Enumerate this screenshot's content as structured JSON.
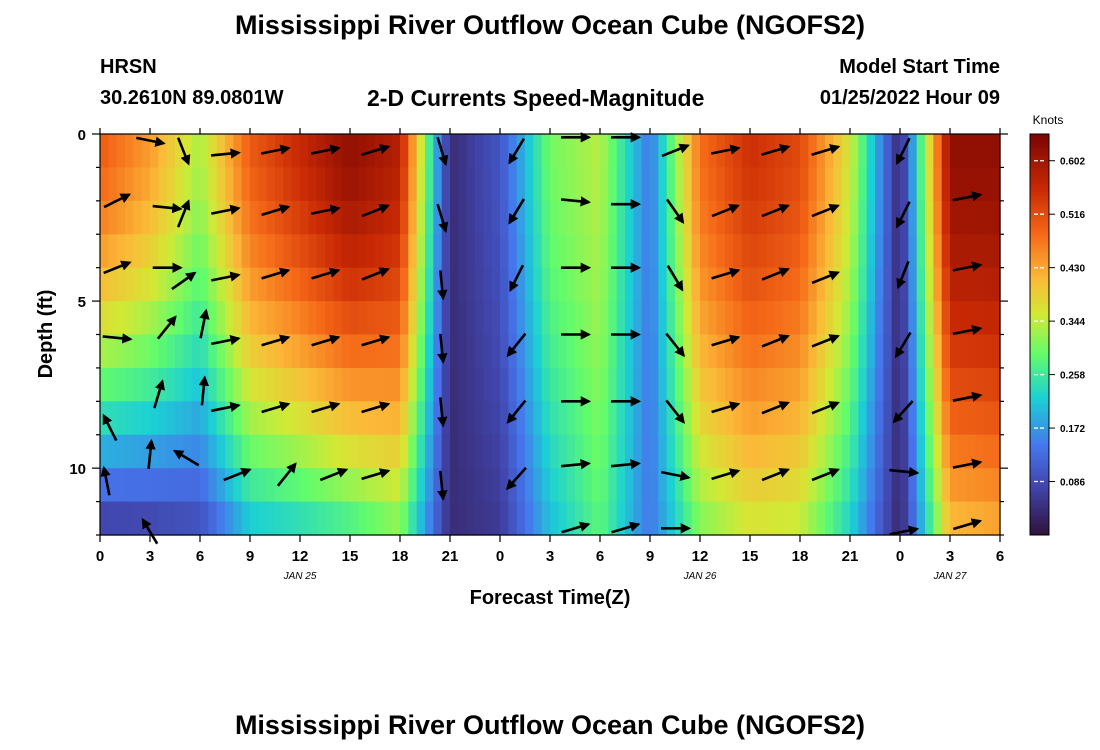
{
  "header": {
    "title": "Mississippi River Outflow Ocean Cube (NGOFS2)",
    "station": "HRSN",
    "coords": "30.2610N  89.0801W",
    "chart_subtitle": "2-D Currents Speed-Magnitude",
    "model_label": "Model Start Time",
    "model_time": "01/25/2022 Hour 09",
    "bottom_title": "Mississippi River Outflow Ocean Cube (NGOFS2)"
  },
  "chart_data": {
    "type": "heatmap",
    "title": "2-D Currents Speed-Magnitude",
    "xlabel": "Forecast Time(Z)",
    "ylabel": "Depth (ft)",
    "x_tick_labels": [
      "0",
      "3",
      "6",
      "9",
      "12",
      "15",
      "18",
      "21",
      "0",
      "3",
      "6",
      "9",
      "12",
      "15",
      "18",
      "21",
      "0",
      "3",
      "6"
    ],
    "date_labels": [
      {
        "label": "JAN 25",
        "hour": 12
      },
      {
        "label": "JAN 26",
        "hour": 36
      },
      {
        "label": "JAN 27",
        "hour": 51
      }
    ],
    "xlim": [
      0,
      54
    ],
    "ylim": [
      0,
      12
    ],
    "y_ticks": [
      0,
      5,
      10
    ],
    "colorbar": {
      "unit": "Knots",
      "min": 0.0,
      "max": 0.645,
      "tick_labels": [
        "0.602",
        "0.516",
        "0.430",
        "0.344",
        "0.258",
        "0.172",
        "0.086"
      ],
      "tick_values": [
        0.602,
        0.516,
        0.43,
        0.344,
        0.258,
        0.172,
        0.086
      ]
    },
    "speed_profile_time_hours": [
      0,
      3,
      6,
      9,
      12,
      15,
      18,
      21,
      24,
      27,
      30,
      33,
      36,
      39,
      42,
      45,
      48,
      51,
      54
    ],
    "speed_surface_knots": [
      0.5,
      0.44,
      0.33,
      0.5,
      0.56,
      0.62,
      0.58,
      0.04,
      0.1,
      0.3,
      0.34,
      0.14,
      0.48,
      0.55,
      0.52,
      0.36,
      0.03,
      0.62,
      0.62
    ],
    "speed_bottom_knots": [
      0.05,
      0.06,
      0.08,
      0.2,
      0.22,
      0.25,
      0.3,
      0.04,
      0.06,
      0.2,
      0.28,
      0.14,
      0.3,
      0.35,
      0.34,
      0.22,
      0.03,
      0.4,
      0.42
    ],
    "vectors": [
      {
        "hour": 3,
        "depth": 0.2,
        "u": 1,
        "v": -0.2
      },
      {
        "hour": 5,
        "depth": 0.5,
        "u": 0.4,
        "v": -1
      },
      {
        "hour": 7.5,
        "depth": 0.6,
        "u": 1,
        "v": 0.1
      },
      {
        "hour": 10.5,
        "depth": 0.5,
        "u": 1,
        "v": 0.2
      },
      {
        "hour": 13.5,
        "depth": 0.5,
        "u": 1,
        "v": 0.2
      },
      {
        "hour": 16.5,
        "depth": 0.5,
        "u": 1,
        "v": 0.3
      },
      {
        "hour": 20.5,
        "depth": 0.5,
        "u": 0.3,
        "v": -1
      },
      {
        "hour": 25,
        "depth": 0.5,
        "u": -0.6,
        "v": -1
      },
      {
        "hour": 28.5,
        "depth": 0.1,
        "u": 1,
        "v": 0
      },
      {
        "hour": 31.5,
        "depth": 0.1,
        "u": 1,
        "v": 0
      },
      {
        "hour": 34.5,
        "depth": 0.5,
        "u": 1,
        "v": 0.4
      },
      {
        "hour": 37.5,
        "depth": 0.5,
        "u": 1,
        "v": 0.2
      },
      {
        "hour": 40.5,
        "depth": 0.5,
        "u": 1,
        "v": 0.3
      },
      {
        "hour": 43.5,
        "depth": 0.5,
        "u": 1,
        "v": 0.3
      },
      {
        "hour": 48.2,
        "depth": 0.5,
        "u": -0.5,
        "v": -1
      },
      {
        "hour": 1,
        "depth": 2.0,
        "u": 1,
        "v": 0.5
      },
      {
        "hour": 4,
        "depth": 2.2,
        "u": 1,
        "v": -0.1
      },
      {
        "hour": 5,
        "depth": 2.4,
        "u": 0.4,
        "v": 1
      },
      {
        "hour": 7.5,
        "depth": 2.3,
        "u": 1,
        "v": 0.2
      },
      {
        "hour": 10.5,
        "depth": 2.3,
        "u": 1,
        "v": 0.3
      },
      {
        "hour": 13.5,
        "depth": 2.3,
        "u": 1,
        "v": 0.2
      },
      {
        "hour": 16.5,
        "depth": 2.3,
        "u": 1,
        "v": 0.4
      },
      {
        "hour": 20.5,
        "depth": 2.5,
        "u": 0.3,
        "v": -1
      },
      {
        "hour": 25,
        "depth": 2.3,
        "u": -0.6,
        "v": -1
      },
      {
        "hour": 28.5,
        "depth": 2.0,
        "u": 1,
        "v": -0.1
      },
      {
        "hour": 31.5,
        "depth": 2.1,
        "u": 1,
        "v": 0
      },
      {
        "hour": 34.5,
        "depth": 2.3,
        "u": 0.7,
        "v": -1
      },
      {
        "hour": 37.5,
        "depth": 2.3,
        "u": 1,
        "v": 0.4
      },
      {
        "hour": 40.5,
        "depth": 2.3,
        "u": 1,
        "v": 0.4
      },
      {
        "hour": 43.5,
        "depth": 2.3,
        "u": 1,
        "v": 0.4
      },
      {
        "hour": 48.2,
        "depth": 2.4,
        "u": -0.5,
        "v": -1
      },
      {
        "hour": 52.0,
        "depth": 1.9,
        "u": 1,
        "v": 0.2
      },
      {
        "hour": 1,
        "depth": 4.0,
        "u": 1,
        "v": 0.4
      },
      {
        "hour": 4,
        "depth": 4.0,
        "u": 1,
        "v": 0
      },
      {
        "hour": 5,
        "depth": 4.4,
        "u": 1,
        "v": 0.7
      },
      {
        "hour": 7.5,
        "depth": 4.3,
        "u": 1,
        "v": 0.2
      },
      {
        "hour": 10.5,
        "depth": 4.2,
        "u": 1,
        "v": 0.3
      },
      {
        "hour": 13.5,
        "depth": 4.2,
        "u": 1,
        "v": 0.3
      },
      {
        "hour": 16.5,
        "depth": 4.2,
        "u": 1,
        "v": 0.4
      },
      {
        "hour": 20.5,
        "depth": 4.5,
        "u": 0.1,
        "v": -1
      },
      {
        "hour": 25,
        "depth": 4.3,
        "u": -0.5,
        "v": -1
      },
      {
        "hour": 28.5,
        "depth": 4.0,
        "u": 1,
        "v": 0
      },
      {
        "hour": 31.5,
        "depth": 4.0,
        "u": 1,
        "v": 0
      },
      {
        "hour": 34.5,
        "depth": 4.3,
        "u": 0.6,
        "v": -1
      },
      {
        "hour": 37.5,
        "depth": 4.2,
        "u": 1,
        "v": 0.3
      },
      {
        "hour": 40.5,
        "depth": 4.2,
        "u": 1,
        "v": 0.4
      },
      {
        "hour": 43.5,
        "depth": 4.3,
        "u": 1,
        "v": 0.4
      },
      {
        "hour": 48.2,
        "depth": 4.2,
        "u": -0.4,
        "v": -1
      },
      {
        "hour": 52.0,
        "depth": 4.0,
        "u": 1,
        "v": 0.2
      },
      {
        "hour": 1,
        "depth": 6.1,
        "u": 1,
        "v": -0.1
      },
      {
        "hour": 4,
        "depth": 5.8,
        "u": 0.8,
        "v": 1
      },
      {
        "hour": 6.2,
        "depth": 5.7,
        "u": 0.2,
        "v": 1
      },
      {
        "hour": 7.5,
        "depth": 6.2,
        "u": 1,
        "v": 0.2
      },
      {
        "hour": 10.5,
        "depth": 6.2,
        "u": 1,
        "v": 0.3
      },
      {
        "hour": 13.5,
        "depth": 6.2,
        "u": 1,
        "v": 0.3
      },
      {
        "hour": 16.5,
        "depth": 6.2,
        "u": 1,
        "v": 0.3
      },
      {
        "hour": 20.5,
        "depth": 6.4,
        "u": 0.1,
        "v": -1
      },
      {
        "hour": 25,
        "depth": 6.3,
        "u": -0.8,
        "v": -1
      },
      {
        "hour": 28.5,
        "depth": 6.0,
        "u": 1,
        "v": 0
      },
      {
        "hour": 31.5,
        "depth": 6.0,
        "u": 1,
        "v": 0
      },
      {
        "hour": 34.5,
        "depth": 6.3,
        "u": 0.8,
        "v": -1
      },
      {
        "hour": 37.5,
        "depth": 6.2,
        "u": 1,
        "v": 0.3
      },
      {
        "hour": 40.5,
        "depth": 6.2,
        "u": 1,
        "v": 0.4
      },
      {
        "hour": 43.5,
        "depth": 6.2,
        "u": 1,
        "v": 0.4
      },
      {
        "hour": 48.2,
        "depth": 6.3,
        "u": -0.6,
        "v": -1
      },
      {
        "hour": 52.0,
        "depth": 5.9,
        "u": 1,
        "v": 0.2
      },
      {
        "hour": 0.6,
        "depth": 8.8,
        "u": -0.5,
        "v": 1
      },
      {
        "hour": 3.5,
        "depth": 7.8,
        "u": 0.3,
        "v": 1
      },
      {
        "hour": 6.2,
        "depth": 7.7,
        "u": 0.1,
        "v": 1
      },
      {
        "hour": 7.5,
        "depth": 8.2,
        "u": 1,
        "v": 0.2
      },
      {
        "hour": 10.5,
        "depth": 8.2,
        "u": 1,
        "v": 0.3
      },
      {
        "hour": 13.5,
        "depth": 8.2,
        "u": 1,
        "v": 0.3
      },
      {
        "hour": 16.5,
        "depth": 8.2,
        "u": 1,
        "v": 0.3
      },
      {
        "hour": 20.5,
        "depth": 8.3,
        "u": 0.1,
        "v": -1
      },
      {
        "hour": 25,
        "depth": 8.3,
        "u": -0.8,
        "v": -1
      },
      {
        "hour": 28.5,
        "depth": 8.0,
        "u": 1,
        "v": 0
      },
      {
        "hour": 31.5,
        "depth": 8.0,
        "u": 1,
        "v": 0
      },
      {
        "hour": 34.5,
        "depth": 8.3,
        "u": 0.8,
        "v": -1
      },
      {
        "hour": 37.5,
        "depth": 8.2,
        "u": 1,
        "v": 0.3
      },
      {
        "hour": 40.5,
        "depth": 8.2,
        "u": 1,
        "v": 0.4
      },
      {
        "hour": 43.5,
        "depth": 8.2,
        "u": 1,
        "v": 0.4
      },
      {
        "hour": 48.2,
        "depth": 8.3,
        "u": -0.9,
        "v": -1
      },
      {
        "hour": 52.0,
        "depth": 7.9,
        "u": 1,
        "v": 0.2
      },
      {
        "hour": 0.4,
        "depth": 10.4,
        "u": -0.2,
        "v": 1
      },
      {
        "hour": 3.0,
        "depth": 9.6,
        "u": 0.1,
        "v": 1
      },
      {
        "hour": 5.2,
        "depth": 9.7,
        "u": -1,
        "v": 0.6
      },
      {
        "hour": 8.2,
        "depth": 10.2,
        "u": 1,
        "v": 0.4
      },
      {
        "hour": 11.2,
        "depth": 10.2,
        "u": 0.8,
        "v": 1
      },
      {
        "hour": 14.0,
        "depth": 10.2,
        "u": 1,
        "v": 0.4
      },
      {
        "hour": 16.5,
        "depth": 10.2,
        "u": 1,
        "v": 0.3
      },
      {
        "hour": 20.5,
        "depth": 10.5,
        "u": 0.1,
        "v": -1
      },
      {
        "hour": 25,
        "depth": 10.3,
        "u": -0.9,
        "v": -1
      },
      {
        "hour": 28.5,
        "depth": 9.9,
        "u": 1,
        "v": 0.1
      },
      {
        "hour": 31.5,
        "depth": 9.9,
        "u": 1,
        "v": 0.1
      },
      {
        "hour": 34.5,
        "depth": 10.2,
        "u": 1,
        "v": -0.2
      },
      {
        "hour": 37.5,
        "depth": 10.2,
        "u": 1,
        "v": 0.3
      },
      {
        "hour": 40.5,
        "depth": 10.2,
        "u": 1,
        "v": 0.4
      },
      {
        "hour": 43.5,
        "depth": 10.2,
        "u": 1,
        "v": 0.4
      },
      {
        "hour": 48.2,
        "depth": 10.1,
        "u": 1,
        "v": -0.1
      },
      {
        "hour": 52.0,
        "depth": 9.9,
        "u": 1,
        "v": 0.2
      },
      {
        "hour": 3.0,
        "depth": 11.9,
        "u": -0.6,
        "v": 1
      },
      {
        "hour": 28.5,
        "depth": 11.8,
        "u": 1,
        "v": 0.3
      },
      {
        "hour": 31.5,
        "depth": 11.8,
        "u": 1,
        "v": 0.3
      },
      {
        "hour": 34.5,
        "depth": 11.8,
        "u": 1,
        "v": 0
      },
      {
        "hour": 48.2,
        "depth": 11.9,
        "u": 1,
        "v": 0.2
      },
      {
        "hour": 52.0,
        "depth": 11.7,
        "u": 1,
        "v": 0.3
      }
    ]
  }
}
